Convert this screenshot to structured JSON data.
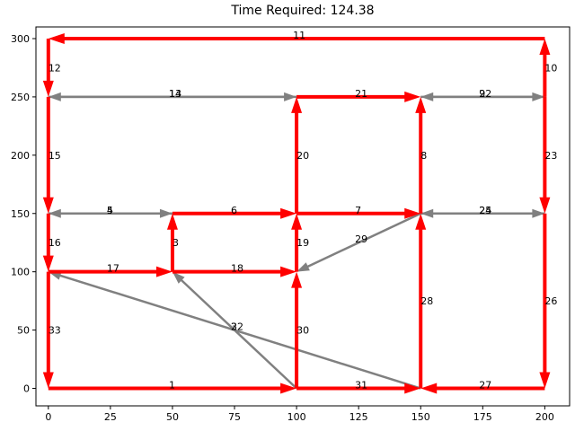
{
  "chart_data": {
    "type": "directed-graph",
    "title": "Time Required: 124.38",
    "xlim": [
      -5,
      210
    ],
    "ylim": [
      -15,
      310
    ],
    "xticks": [
      0,
      25,
      50,
      75,
      100,
      125,
      150,
      175,
      200
    ],
    "yticks": [
      0,
      50,
      100,
      150,
      200,
      250,
      300
    ],
    "grid": false,
    "colors": {
      "path": "#ff0000",
      "other": "#808080"
    },
    "edges": [
      {
        "id": "1",
        "from": [
          0,
          0
        ],
        "to": [
          100,
          0
        ],
        "on_path": true
      },
      {
        "id": "31",
        "from": [
          100,
          0
        ],
        "to": [
          150,
          0
        ],
        "on_path": true
      },
      {
        "id": "27",
        "from": [
          200,
          0
        ],
        "to": [
          150,
          0
        ],
        "on_path": true
      },
      {
        "id": "26",
        "from": [
          200,
          150
        ],
        "to": [
          200,
          0
        ],
        "on_path": true
      },
      {
        "id": "28",
        "from": [
          150,
          0
        ],
        "to": [
          150,
          150
        ],
        "on_path": true
      },
      {
        "id": "30",
        "from": [
          100,
          0
        ],
        "to": [
          100,
          100
        ],
        "on_path": true
      },
      {
        "id": "33",
        "from": [
          0,
          100
        ],
        "to": [
          0,
          0
        ],
        "on_path": true
      },
      {
        "id": "17",
        "from": [
          0,
          100
        ],
        "to": [
          50,
          100
        ],
        "on_path": true
      },
      {
        "id": "18",
        "from": [
          50,
          100
        ],
        "to": [
          100,
          100
        ],
        "on_path": true
      },
      {
        "id": "3",
        "from": [
          50,
          100
        ],
        "to": [
          50,
          150
        ],
        "on_path": true
      },
      {
        "id": "19",
        "from": [
          100,
          100
        ],
        "to": [
          100,
          150
        ],
        "on_path": true
      },
      {
        "id": "16",
        "from": [
          0,
          150
        ],
        "to": [
          0,
          100
        ],
        "on_path": true
      },
      {
        "id": "6",
        "from": [
          50,
          150
        ],
        "to": [
          100,
          150
        ],
        "on_path": true
      },
      {
        "id": "7",
        "from": [
          100,
          150
        ],
        "to": [
          150,
          150
        ],
        "on_path": true
      },
      {
        "id": "15",
        "from": [
          0,
          250
        ],
        "to": [
          0,
          150
        ],
        "on_path": true
      },
      {
        "id": "20",
        "from": [
          100,
          150
        ],
        "to": [
          100,
          250
        ],
        "on_path": true
      },
      {
        "id": "8",
        "from": [
          150,
          150
        ],
        "to": [
          150,
          250
        ],
        "on_path": true
      },
      {
        "id": "23",
        "from": [
          200,
          250
        ],
        "to": [
          200,
          150
        ],
        "on_path": true
      },
      {
        "id": "21",
        "from": [
          100,
          250
        ],
        "to": [
          150,
          250
        ],
        "on_path": true
      },
      {
        "id": "12",
        "from": [
          0,
          300
        ],
        "to": [
          0,
          250
        ],
        "on_path": true
      },
      {
        "id": "10",
        "from": [
          200,
          250
        ],
        "to": [
          200,
          300
        ],
        "on_path": true
      },
      {
        "id": "11",
        "from": [
          200,
          300
        ],
        "to": [
          0,
          300
        ],
        "on_path": true
      },
      {
        "id": "14",
        "from": [
          0,
          250
        ],
        "to": [
          100,
          250
        ],
        "on_path": false
      },
      {
        "id": "13",
        "from": [
          100,
          250
        ],
        "to": [
          0,
          250
        ],
        "on_path": false
      },
      {
        "id": "22",
        "from": [
          150,
          250
        ],
        "to": [
          200,
          250
        ],
        "on_path": false
      },
      {
        "id": "9",
        "from": [
          200,
          250
        ],
        "to": [
          150,
          250
        ],
        "on_path": false
      },
      {
        "id": "5",
        "from": [
          0,
          150
        ],
        "to": [
          50,
          150
        ],
        "on_path": false
      },
      {
        "id": "4",
        "from": [
          50,
          150
        ],
        "to": [
          0,
          150
        ],
        "on_path": false
      },
      {
        "id": "25",
        "from": [
          150,
          150
        ],
        "to": [
          200,
          150
        ],
        "on_path": false
      },
      {
        "id": "24",
        "from": [
          200,
          150
        ],
        "to": [
          150,
          150
        ],
        "on_path": false
      },
      {
        "id": "29",
        "from": [
          150,
          150
        ],
        "to": [
          100,
          100
        ],
        "on_path": false
      },
      {
        "id": "2",
        "from": [
          150,
          0
        ],
        "to": [
          0,
          100
        ],
        "on_path": false
      },
      {
        "id": "32",
        "from": [
          100,
          0
        ],
        "to": [
          50,
          100
        ],
        "on_path": false
      }
    ]
  }
}
